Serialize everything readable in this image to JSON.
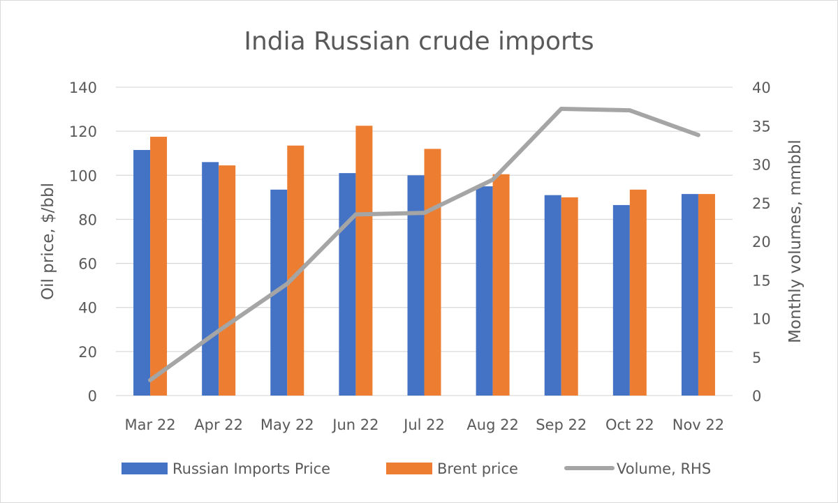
{
  "chart_data": {
    "type": "bar",
    "title": "India Russian crude imports",
    "categories": [
      "Mar 22",
      "Apr 22",
      "May 22",
      "Jun 22",
      "Jul 22",
      "Aug 22",
      "Sep 22",
      "Oct 22",
      "Nov 22"
    ],
    "series": [
      {
        "name": "Russian Imports Price",
        "type": "bar",
        "axis": "left",
        "color": "#4472C4",
        "values": [
          111.5,
          106,
          93.5,
          101,
          100,
          95,
          91,
          86.5,
          91.5
        ]
      },
      {
        "name": "Brent price",
        "type": "bar",
        "axis": "left",
        "color": "#ED7D31",
        "values": [
          117.5,
          104.5,
          113.5,
          122.5,
          112,
          100.5,
          90,
          93.5,
          91.5
        ]
      },
      {
        "name": "Volume, RHS",
        "type": "line",
        "axis": "right",
        "color": "#A5A5A5",
        "values": [
          2,
          8.4,
          14.5,
          23.5,
          23.7,
          28,
          37.2,
          37,
          33.8
        ]
      }
    ],
    "y_left": {
      "label": "Oil price, $/bbl",
      "min": 0,
      "max": 140,
      "ticks": [
        0,
        20,
        40,
        60,
        80,
        100,
        120,
        140
      ]
    },
    "y_right": {
      "label": "Monthly volumes, mmbbl",
      "min": 0,
      "max": 40,
      "ticks": [
        0,
        5,
        10,
        15,
        20,
        25,
        30,
        35,
        40
      ]
    },
    "grid": true,
    "legend_position": "bottom"
  }
}
